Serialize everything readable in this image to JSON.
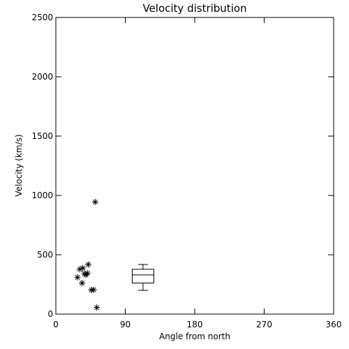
{
  "chart_data": {
    "type": "scatter",
    "title": "Velocity distribution",
    "xlabel": "Angle from north",
    "ylabel": "Velocity (km/s)",
    "xlim": [
      0,
      360
    ],
    "ylim": [
      0,
      2500
    ],
    "xticks": [
      0,
      90,
      180,
      270,
      360
    ],
    "yticks": [
      0,
      500,
      1000,
      1500,
      2000,
      2500
    ],
    "grid": false,
    "marker": "asterisk",
    "color": "#000000",
    "points": [
      {
        "x": 51,
        "y": 945
      },
      {
        "x": 42,
        "y": 418
      },
      {
        "x": 31,
        "y": 378
      },
      {
        "x": 35,
        "y": 388
      },
      {
        "x": 37,
        "y": 340
      },
      {
        "x": 39,
        "y": 330
      },
      {
        "x": 41,
        "y": 345
      },
      {
        "x": 28,
        "y": 310
      },
      {
        "x": 34,
        "y": 262
      },
      {
        "x": 46,
        "y": 203
      },
      {
        "x": 49,
        "y": 205
      },
      {
        "x": 53,
        "y": 55
      }
    ],
    "boxplot": {
      "x_center": 113,
      "x_halfwidth": 14,
      "whisker_low": 200,
      "q1": 262,
      "median": 330,
      "q3": 378,
      "whisker_high": 418
    }
  }
}
